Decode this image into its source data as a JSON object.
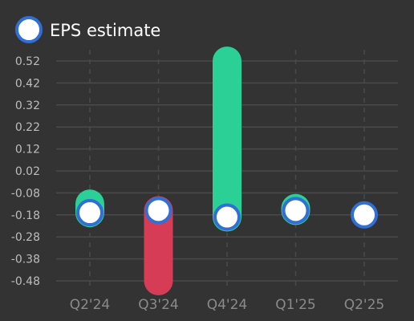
{
  "chart_data": {
    "type": "bar",
    "categories": [
      "Q2'24",
      "Q3'24",
      "Q4'24",
      "Q1'25",
      "Q2'25"
    ],
    "series": [
      {
        "name": "EPS estimate",
        "values": [
          -0.17,
          -0.16,
          -0.19,
          -0.16,
          -0.18
        ]
      }
    ],
    "actual": [
      -0.13,
      -0.48,
      0.52,
      -0.15,
      null
    ],
    "y_ticks": [
      0.52,
      0.42,
      0.32,
      0.22,
      0.12,
      0.02,
      -0.08,
      -0.18,
      -0.28,
      -0.38,
      -0.48
    ],
    "y_tick_labels": [
      "0.52",
      "0.42",
      "0.32",
      "0.22",
      "0.12",
      "0.02",
      "-0.08",
      "-0.18",
      "-0.28",
      "-0.38",
      "-0.48"
    ],
    "ylim": [
      -0.48,
      0.52
    ],
    "grid": true,
    "legend": {
      "position": "top-left",
      "label": "EPS estimate"
    },
    "colors": {
      "background": "#333333",
      "beat": "#2ad095",
      "miss": "#d63c56",
      "estimate_fill": "#ffffff",
      "estimate_stroke": "#2f6fd6",
      "grid": "#4a4a4a"
    }
  }
}
